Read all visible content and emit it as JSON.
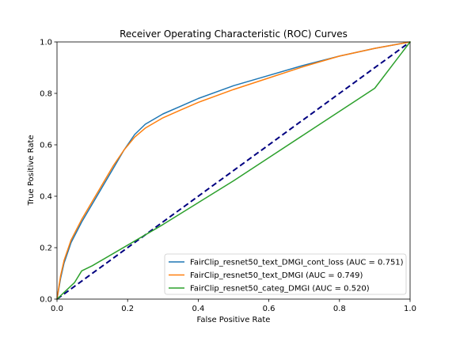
{
  "chart_data": {
    "type": "line",
    "title": "Receiver Operating Characteristic (ROC) Curves",
    "xlabel": "False Positive Rate",
    "ylabel": "True Positive Rate",
    "xlim": [
      0.0,
      1.0
    ],
    "ylim": [
      0.0,
      1.0
    ],
    "x_ticks": [
      "0.0",
      "0.2",
      "0.4",
      "0.6",
      "0.8",
      "1.0"
    ],
    "y_ticks": [
      "0.0",
      "0.2",
      "0.4",
      "0.6",
      "0.8",
      "1.0"
    ],
    "grid": false,
    "legend_position": "lower-right",
    "reference_line": {
      "x": [
        0.0,
        1.0
      ],
      "y": [
        0.0,
        1.0
      ],
      "color": "#000080",
      "style": "dashed"
    },
    "series": [
      {
        "name": "FairClip_resnet50_text_DMGI_cont_loss (AUC = 0.751)",
        "color": "#1f77b4",
        "x": [
          0.0,
          0.01,
          0.02,
          0.04,
          0.07,
          0.1,
          0.13,
          0.16,
          0.19,
          0.22,
          0.25,
          0.3,
          0.35,
          0.4,
          0.5,
          0.6,
          0.7,
          0.8,
          0.9,
          1.0
        ],
        "y": [
          0.0,
          0.08,
          0.14,
          0.22,
          0.3,
          0.37,
          0.44,
          0.51,
          0.58,
          0.64,
          0.68,
          0.72,
          0.75,
          0.78,
          0.83,
          0.87,
          0.91,
          0.945,
          0.975,
          1.0
        ]
      },
      {
        "name": "FairClip_resnet50_text_DMGI (AUC = 0.749)",
        "color": "#ff7f0e",
        "x": [
          0.0,
          0.01,
          0.02,
          0.04,
          0.07,
          0.1,
          0.13,
          0.16,
          0.19,
          0.22,
          0.25,
          0.3,
          0.35,
          0.4,
          0.5,
          0.6,
          0.7,
          0.8,
          0.9,
          1.0
        ],
        "y": [
          0.0,
          0.09,
          0.15,
          0.23,
          0.31,
          0.38,
          0.45,
          0.52,
          0.58,
          0.63,
          0.665,
          0.705,
          0.735,
          0.765,
          0.815,
          0.86,
          0.905,
          0.945,
          0.975,
          1.0
        ]
      },
      {
        "name": "FairClip_resnet50_categ_DMGI (AUC = 0.520)",
        "color": "#2ca02c",
        "x": [
          0.0,
          0.05,
          0.07,
          0.1,
          0.2,
          0.3,
          0.4,
          0.5,
          0.6,
          0.7,
          0.8,
          0.9,
          1.0
        ],
        "y": [
          0.0,
          0.065,
          0.11,
          0.13,
          0.21,
          0.29,
          0.375,
          0.46,
          0.55,
          0.64,
          0.73,
          0.82,
          1.0
        ]
      }
    ]
  }
}
